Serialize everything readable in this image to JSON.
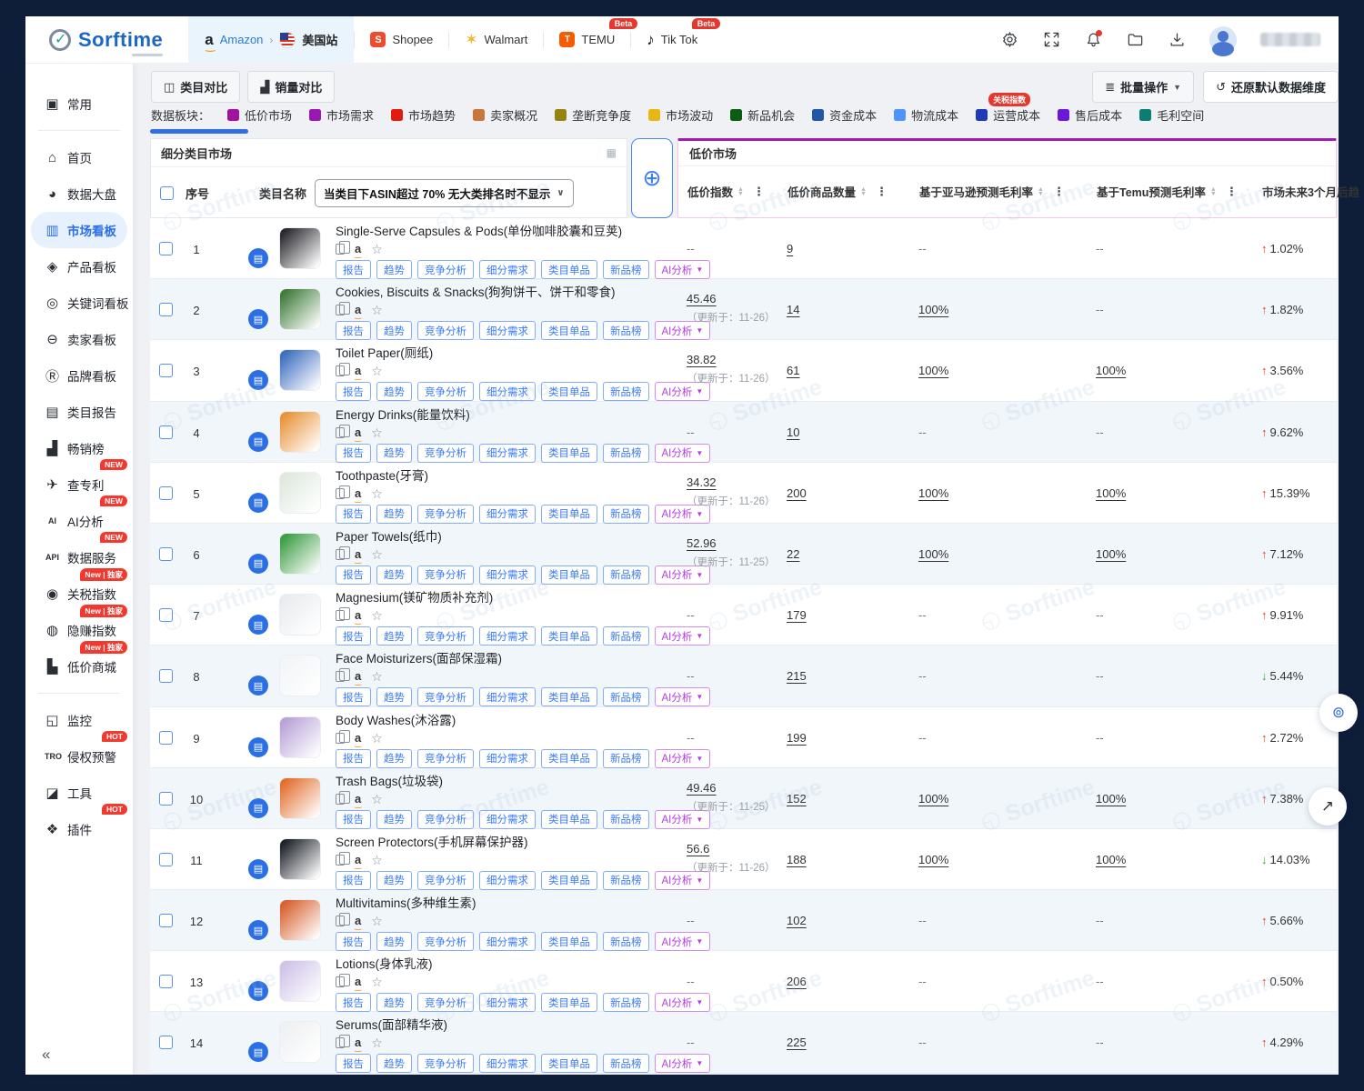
{
  "brand": {
    "name": "Sorftime"
  },
  "topnav": {
    "amazon_label": "Amazon",
    "site_label": "美国站",
    "shopee_label": "Shopee",
    "walmart_label": "Walmart",
    "temu_label": "TEMU",
    "tiktok_label": "Tik Tok",
    "beta_badge": "Beta"
  },
  "sidebar": {
    "collapse": "«",
    "items": [
      {
        "label": "常用",
        "icon": "shield"
      },
      {
        "divider": true
      },
      {
        "label": "首页",
        "icon": "home"
      },
      {
        "label": "数据大盘",
        "icon": "pie"
      },
      {
        "label": "市场看板",
        "icon": "market",
        "active": true
      },
      {
        "label": "产品看板",
        "icon": "product"
      },
      {
        "label": "关键词看板",
        "icon": "keyword"
      },
      {
        "label": "卖家看板",
        "icon": "seller"
      },
      {
        "label": "品牌看板",
        "icon": "brand"
      },
      {
        "label": "类目报告",
        "icon": "report"
      },
      {
        "label": "畅销榜",
        "icon": "chart"
      },
      {
        "label": "查专利",
        "icon": "patent",
        "badge": "NEW"
      },
      {
        "label": "AI分析",
        "icon": "ai",
        "badge": "NEW"
      },
      {
        "label": "数据服务",
        "icon": "api",
        "badge": "NEW"
      },
      {
        "label": "关税指数",
        "icon": "tariff",
        "badge": "New | 独家"
      },
      {
        "label": "隐赚指数",
        "icon": "profit",
        "badge": "New | 独家"
      },
      {
        "label": "低价商城",
        "icon": "mall",
        "badge": "New | 独家"
      },
      {
        "divider": true
      },
      {
        "label": "监控",
        "icon": "monitor"
      },
      {
        "label": "侵权预警",
        "icon": "tro",
        "badge": "HOT"
      },
      {
        "label": "工具",
        "icon": "tools"
      },
      {
        "label": "插件",
        "icon": "plugin",
        "badge": "HOT"
      }
    ]
  },
  "toolbar": {
    "category_compare": "类目对比",
    "sales_compare": "销量对比",
    "batch_ops": "批量操作",
    "restore_default": "还原默认数据维度"
  },
  "legend": {
    "label": "数据板块：",
    "items": [
      {
        "label": "低价市场",
        "color": "#a1139e"
      },
      {
        "label": "市场需求",
        "color": "#9718b4"
      },
      {
        "label": "市场趋势",
        "color": "#e11b10"
      },
      {
        "label": "卖家概况",
        "color": "#c9763d"
      },
      {
        "label": "垄断竞争度",
        "color": "#96830f"
      },
      {
        "label": "市场波动",
        "color": "#e8b812"
      },
      {
        "label": "新品机会",
        "color": "#0c5c12"
      },
      {
        "label": "资金成本",
        "color": "#2456a8"
      },
      {
        "label": "物流成本",
        "color": "#4f94fd"
      },
      {
        "label": "运营成本",
        "color": "#1f3bb3",
        "badge": "关税指数"
      },
      {
        "label": "售后成本",
        "color": "#6c18d8"
      },
      {
        "label": "毛利空间",
        "color": "#0b7d72"
      }
    ]
  },
  "table": {
    "left_title": "细分类目市场",
    "seq_header": "序号",
    "name_header": "类目名称",
    "filter_text": "当类目下ASIN超过 70% 无大类排名时不显示",
    "right_title": "低价市场",
    "columns": [
      "低价指数",
      "低价商品数量",
      "基于亚马逊预测毛利率",
      "基于Temu预测毛利率",
      "市场未来3个月后趋"
    ],
    "actions": [
      "报告",
      "趋势",
      "竞争分析",
      "细分需求",
      "类目单品",
      "新品榜"
    ],
    "ai_action": "AI分析",
    "rows": [
      {
        "index": 1,
        "name": "Single-Serve Capsules & Pods(单份咖啡胶囊和豆荚)",
        "thumb": "#2a2a30",
        "price_index": "--",
        "updated": "",
        "count": "9",
        "amazon_margin": "--",
        "temu_margin": "--",
        "trend_dir": "up",
        "trend_value": "1.02%"
      },
      {
        "index": 2,
        "name": "Cookies, Biscuits & Snacks(狗狗饼干、饼干和零食)",
        "thumb": "#3f7d3a",
        "price_index": "45.46",
        "updated": "（更新于：11-26）",
        "count": "14",
        "amazon_margin": "100%",
        "temu_margin": "--",
        "trend_dir": "up",
        "trend_value": "1.82%"
      },
      {
        "index": 3,
        "name": "Toilet Paper(厕纸)",
        "thumb": "#3f6fc0",
        "price_index": "38.82",
        "updated": "（更新于：11-26）",
        "count": "61",
        "amazon_margin": "100%",
        "temu_margin": "100%",
        "trend_dir": "up",
        "trend_value": "3.56%"
      },
      {
        "index": 4,
        "name": "Energy Drinks(能量饮料)",
        "thumb": "#e8953a",
        "price_index": "--",
        "updated": "",
        "count": "10",
        "amazon_margin": "--",
        "temu_margin": "--",
        "trend_dir": "up",
        "trend_value": "9.62%"
      },
      {
        "index": 5,
        "name": "Toothpaste(牙膏)",
        "thumb": "#dfe8df",
        "price_index": "34.32",
        "updated": "（更新于：11-26）",
        "count": "200",
        "amazon_margin": "100%",
        "temu_margin": "100%",
        "trend_dir": "up",
        "trend_value": "15.39%"
      },
      {
        "index": 6,
        "name": "Paper Towels(纸巾)",
        "thumb": "#3e9e46",
        "price_index": "52.96",
        "updated": "（更新于：11-25）",
        "count": "22",
        "amazon_margin": "100%",
        "temu_margin": "100%",
        "trend_dir": "up",
        "trend_value": "7.12%"
      },
      {
        "index": 7,
        "name": "Magnesium(镁矿物质补充剂)",
        "thumb": "#e9ecef",
        "price_index": "--",
        "updated": "",
        "count": "179",
        "amazon_margin": "--",
        "temu_margin": "--",
        "trend_dir": "up",
        "trend_value": "9.91%"
      },
      {
        "index": 8,
        "name": "Face Moisturizers(面部保湿霜)",
        "thumb": "#f2f4f6",
        "price_index": "--",
        "updated": "",
        "count": "215",
        "amazon_margin": "--",
        "temu_margin": "--",
        "trend_dir": "down",
        "trend_value": "5.44%"
      },
      {
        "index": 9,
        "name": "Body Washes(沐浴露)",
        "thumb": "#b9a3d8",
        "price_index": "--",
        "updated": "",
        "count": "199",
        "amazon_margin": "--",
        "temu_margin": "--",
        "trend_dir": "up",
        "trend_value": "2.72%"
      },
      {
        "index": 10,
        "name": "Trash Bags(垃圾袋)",
        "thumb": "#e2702f",
        "price_index": "49.46",
        "updated": "（更新于：11-25）",
        "count": "152",
        "amazon_margin": "100%",
        "temu_margin": "100%",
        "trend_dir": "up",
        "trend_value": "7.38%"
      },
      {
        "index": 11,
        "name": "Screen Protectors(手机屏幕保护器)",
        "thumb": "#20242c",
        "price_index": "56.6",
        "updated": "（更新于：11-26）",
        "count": "188",
        "amazon_margin": "100%",
        "temu_margin": "100%",
        "trend_dir": "down",
        "trend_value": "14.03%"
      },
      {
        "index": 12,
        "name": "Multivitamins(多种维生素)",
        "thumb": "#d8622f",
        "price_index": "--",
        "updated": "",
        "count": "102",
        "amazon_margin": "--",
        "temu_margin": "--",
        "trend_dir": "up",
        "trend_value": "5.66%"
      },
      {
        "index": 13,
        "name": "Lotions(身体乳液)",
        "thumb": "#cfc3e8",
        "price_index": "--",
        "updated": "",
        "count": "206",
        "amazon_margin": "--",
        "temu_margin": "--",
        "trend_dir": "up",
        "trend_value": "0.50%"
      },
      {
        "index": 14,
        "name": "Serums(面部精华液)",
        "thumb": "#eef0f2",
        "price_index": "--",
        "updated": "",
        "count": "225",
        "amazon_margin": "--",
        "temu_margin": "--",
        "trend_dir": "up",
        "trend_value": "4.29%"
      }
    ]
  },
  "watermark": "Sorftime"
}
